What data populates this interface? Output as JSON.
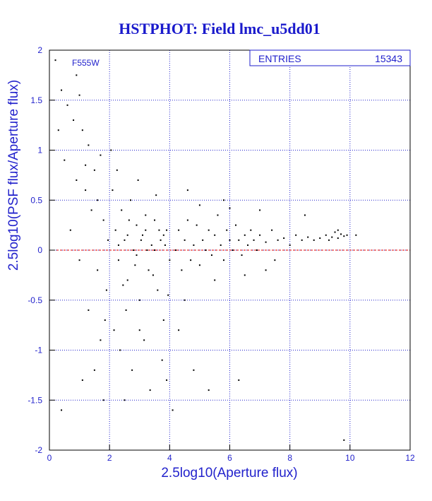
{
  "chart_data": {
    "type": "scatter",
    "title": "HSTPHOT: Field lmc_u5dd01",
    "x_label": "2.5log10(Aperture flux)",
    "y_label": "2.5log10(PSF flux/Aperture flux)",
    "annotation": "F555W",
    "entries_label": "ENTRIES",
    "entries": 15343,
    "xlim": [
      0,
      12
    ],
    "xticks": [
      0,
      2,
      4,
      6,
      8,
      10,
      12
    ],
    "ylim": [
      -2,
      2
    ],
    "yticks": [
      -2,
      -1.5,
      -1,
      -0.5,
      0,
      0.5,
      1,
      1.5,
      2
    ],
    "grid": true,
    "grid_color": "#2222cc",
    "reference_line": 0,
    "reference_color": "#dd0000",
    "color": "#000000",
    "x": [
      0.2,
      0.4,
      0.3,
      0.6,
      0.8,
      1.0,
      1.1,
      1.3,
      0.5,
      0.9,
      1.2,
      1.5,
      1.7,
      1.4,
      1.8,
      0.7,
      1.0,
      1.6,
      1.9,
      1.3,
      1.7,
      1.1,
      1.8,
      0.4,
      1.5,
      1.95,
      1.6,
      1.2,
      0.9,
      1.85,
      2.1,
      2.2,
      2.3,
      2.4,
      2.5,
      2.6,
      2.7,
      2.8,
      2.9,
      3.0,
      3.1,
      3.2,
      3.3,
      3.4,
      3.5,
      3.6,
      3.7,
      3.8,
      3.9,
      4.0,
      2.15,
      2.35,
      2.55,
      2.75,
      2.95,
      3.15,
      3.35,
      3.55,
      3.75,
      3.95,
      2.05,
      2.25,
      2.45,
      2.65,
      2.85,
      3.05,
      3.25,
      3.45,
      3.65,
      3.85,
      2.3,
      2.6,
      2.9,
      3.2,
      3.5,
      3.8,
      4.1,
      3.9,
      2.5,
      3.0,
      4.2,
      4.3,
      4.4,
      4.5,
      4.6,
      4.7,
      4.8,
      4.9,
      5.0,
      5.1,
      5.2,
      5.3,
      5.4,
      5.5,
      5.6,
      5.7,
      5.8,
      5.9,
      6.0,
      6.1,
      6.2,
      6.3,
      6.4,
      6.5,
      6.6,
      6.7,
      6.8,
      6.9,
      7.0,
      7.2,
      7.4,
      7.6,
      7.8,
      8.0,
      8.2,
      8.4,
      8.6,
      8.8,
      9.0,
      4.5,
      5.0,
      5.5,
      6.0,
      6.5,
      7.0,
      7.5,
      4.3,
      4.8,
      5.3,
      6.3,
      4.6,
      5.8,
      8.5,
      9.8,
      7.2,
      9.2,
      9.4,
      9.5,
      9.6,
      9.7,
      9.8,
      9.3,
      9.9,
      10.2,
      9.6
    ],
    "y": [
      1.9,
      1.6,
      1.2,
      1.45,
      1.3,
      1.55,
      1.2,
      1.05,
      0.9,
      0.7,
      0.6,
      0.8,
      0.95,
      0.4,
      0.3,
      0.2,
      -0.1,
      -0.2,
      -0.4,
      -0.6,
      -0.9,
      -1.3,
      -1.5,
      -1.6,
      -1.2,
      0.1,
      0.5,
      0.85,
      1.75,
      -0.7,
      0.6,
      0.2,
      -0.1,
      0.4,
      0.1,
      -0.3,
      0.5,
      0.0,
      0.25,
      -0.5,
      0.15,
      0.35,
      -0.2,
      0.05,
      0.3,
      -0.4,
      0.1,
      -0.7,
      0.2,
      -0.1,
      -0.8,
      -1.0,
      -0.6,
      -1.2,
      0.7,
      -0.9,
      -1.4,
      0.55,
      -1.1,
      -0.45,
      1.0,
      0.8,
      -0.35,
      0.3,
      -0.15,
      0.1,
      0.0,
      -0.25,
      0.2,
      0.05,
      0.05,
      0.15,
      -0.05,
      0.2,
      0.0,
      0.15,
      -1.6,
      -1.3,
      -1.5,
      -0.8,
      0.0,
      0.2,
      -0.2,
      0.1,
      0.3,
      -0.1,
      0.05,
      0.25,
      -0.15,
      0.1,
      0.0,
      0.2,
      -0.05,
      0.15,
      0.35,
      0.05,
      -0.1,
      0.2,
      0.1,
      0.0,
      0.25,
      0.1,
      -0.05,
      0.15,
      0.05,
      0.2,
      0.1,
      0.0,
      0.15,
      0.08,
      0.2,
      0.1,
      0.12,
      0.05,
      0.15,
      0.1,
      0.13,
      0.1,
      0.12,
      -0.5,
      0.45,
      -0.3,
      0.42,
      -0.25,
      0.4,
      -0.1,
      -0.8,
      -1.2,
      -1.4,
      -1.3,
      0.6,
      0.5,
      0.35,
      -1.9,
      -0.2,
      0.15,
      0.13,
      0.18,
      0.12,
      0.16,
      0.14,
      0.1,
      0.15,
      0.15,
      0.2
    ]
  }
}
